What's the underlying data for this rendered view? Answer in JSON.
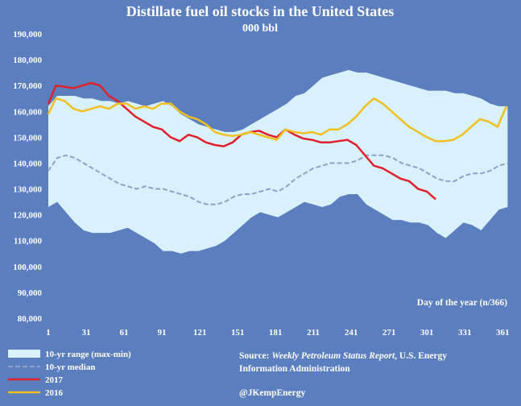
{
  "chart_data": {
    "type": "area",
    "title": "Distillate fuel oil stocks in the United States",
    "subtitle": "000 bbl",
    "xlabel": "Day of the year (n/366)",
    "ylabel": "",
    "xlim": [
      1,
      366
    ],
    "ylim": [
      80000,
      190000
    ],
    "x_ticks": [
      1,
      31,
      61,
      91,
      121,
      151,
      181,
      211,
      241,
      271,
      301,
      331,
      361
    ],
    "y_ticks": [
      80000,
      90000,
      100000,
      110000,
      120000,
      130000,
      140000,
      150000,
      160000,
      170000,
      180000,
      190000
    ],
    "y_tick_labels": [
      "80,000",
      "90,000",
      "100,000",
      "110,000",
      "120,000",
      "130,000",
      "140,000",
      "150,000",
      "160,000",
      "170,000",
      "180,000",
      "190,000"
    ],
    "grid": false,
    "colors": {
      "background": "#5b7ebf",
      "range_fill": "#d9f1fc",
      "median": "#8fa1c9",
      "y2017": "#e0202a",
      "y2016": "#f0c020"
    },
    "range": {
      "name": "10-yr range (max-min)",
      "x": [
        1,
        8,
        15,
        22,
        29,
        36,
        43,
        50,
        57,
        64,
        71,
        78,
        85,
        92,
        99,
        106,
        113,
        120,
        127,
        134,
        141,
        148,
        155,
        162,
        169,
        176,
        183,
        190,
        197,
        204,
        211,
        218,
        225,
        232,
        239,
        246,
        253,
        260,
        267,
        274,
        281,
        288,
        295,
        302,
        309,
        316,
        323,
        330,
        337,
        344,
        351,
        358,
        365
      ],
      "max": [
        162000,
        166000,
        166000,
        166000,
        165000,
        165000,
        164000,
        164000,
        163000,
        164000,
        163000,
        162000,
        163000,
        164000,
        162000,
        159000,
        157000,
        155000,
        154000,
        153000,
        152000,
        152000,
        153000,
        155000,
        157000,
        159000,
        161000,
        163000,
        166000,
        167000,
        170000,
        173000,
        174000,
        175000,
        176000,
        175000,
        175000,
        174000,
        173000,
        172000,
        171000,
        170000,
        169000,
        168000,
        168000,
        168000,
        167000,
        167000,
        166000,
        165000,
        163000,
        162000,
        162000
      ],
      "min": [
        123000,
        125000,
        121000,
        117000,
        114000,
        113000,
        113000,
        113000,
        114000,
        115000,
        113000,
        111000,
        109000,
        106000,
        106000,
        105000,
        106000,
        106000,
        107000,
        108000,
        110000,
        113000,
        116000,
        119000,
        121000,
        120000,
        119000,
        121000,
        123000,
        125000,
        124000,
        123000,
        124000,
        127000,
        128000,
        128000,
        124000,
        122000,
        120000,
        118000,
        118000,
        117000,
        117000,
        116000,
        113000,
        111000,
        114000,
        117000,
        116000,
        114000,
        118000,
        122000,
        123000
      ]
    },
    "series": [
      {
        "name": "10-yr median",
        "x": [
          1,
          8,
          15,
          22,
          29,
          36,
          43,
          50,
          57,
          64,
          71,
          78,
          85,
          92,
          99,
          106,
          113,
          120,
          127,
          134,
          141,
          148,
          155,
          162,
          169,
          176,
          183,
          190,
          197,
          204,
          211,
          218,
          225,
          232,
          239,
          246,
          253,
          260,
          267,
          274,
          281,
          288,
          295,
          302,
          309,
          316,
          323,
          330,
          337,
          344,
          351,
          358,
          365
        ],
        "values": [
          137000,
          142000,
          143000,
          142000,
          140000,
          138000,
          136000,
          134000,
          132000,
          131000,
          130000,
          131000,
          130000,
          130000,
          129000,
          128000,
          127000,
          125000,
          124000,
          124000,
          125000,
          127000,
          128000,
          128000,
          129000,
          130000,
          129000,
          131000,
          134000,
          136000,
          138000,
          139000,
          140000,
          140000,
          140000,
          141000,
          143000,
          143000,
          143000,
          142000,
          140000,
          139000,
          138000,
          136000,
          134000,
          133000,
          133000,
          135000,
          136000,
          136000,
          137000,
          139000,
          140000
        ]
      },
      {
        "name": "2017",
        "x": [
          1,
          7,
          14,
          21,
          28,
          35,
          42,
          49,
          56,
          63,
          70,
          77,
          84,
          91,
          98,
          105,
          112,
          119,
          126,
          133,
          140,
          147,
          154,
          161,
          168,
          175,
          182,
          189,
          196,
          203,
          210,
          217,
          224,
          231,
          238,
          245,
          252,
          259,
          266,
          273,
          280,
          287,
          294,
          301,
          308
        ],
        "values": [
          163000,
          170000,
          169500,
          169000,
          170000,
          171000,
          170000,
          166000,
          164000,
          161000,
          158000,
          156000,
          154000,
          153000,
          150000,
          148500,
          151000,
          150000,
          148000,
          147000,
          146500,
          148000,
          151000,
          152000,
          152500,
          151000,
          150000,
          153000,
          151000,
          149500,
          149000,
          148000,
          148000,
          148500,
          149000,
          147000,
          143000,
          139000,
          138000,
          136000,
          134000,
          133000,
          130000,
          129000,
          126000
        ]
      },
      {
        "name": "2016",
        "x": [
          1,
          7,
          14,
          21,
          28,
          35,
          42,
          49,
          56,
          63,
          70,
          77,
          84,
          91,
          98,
          105,
          112,
          119,
          126,
          133,
          140,
          147,
          154,
          161,
          168,
          175,
          182,
          189,
          196,
          203,
          210,
          217,
          224,
          231,
          238,
          245,
          252,
          259,
          266,
          273,
          280,
          287,
          294,
          301,
          308,
          315,
          322,
          329,
          336,
          343,
          350,
          357,
          364
        ],
        "values": [
          159000,
          165000,
          164000,
          161000,
          160000,
          161000,
          162000,
          161000,
          163000,
          163000,
          161000,
          162000,
          161000,
          163000,
          163000,
          160000,
          158000,
          157000,
          155000,
          152000,
          151000,
          150500,
          151000,
          152000,
          151000,
          150000,
          149000,
          153000,
          152000,
          151500,
          152000,
          151000,
          153000,
          153000,
          155000,
          158000,
          162000,
          165000,
          163000,
          160000,
          157000,
          154000,
          152000,
          150000,
          148500,
          148500,
          149000,
          151000,
          154000,
          157000,
          156000,
          154000,
          162000
        ]
      }
    ],
    "legend": {
      "placement": "bottom-left",
      "entries": [
        "10-yr range (max-min)",
        "10-yr median",
        "2017",
        "2016"
      ]
    },
    "source": {
      "prefix": "Source: ",
      "italic": "Weekly Petroleum Status Report",
      "line1_rest": ", U.S. Energy",
      "line2": "Information Administration"
    },
    "attribution": "@JKempEnergy"
  }
}
